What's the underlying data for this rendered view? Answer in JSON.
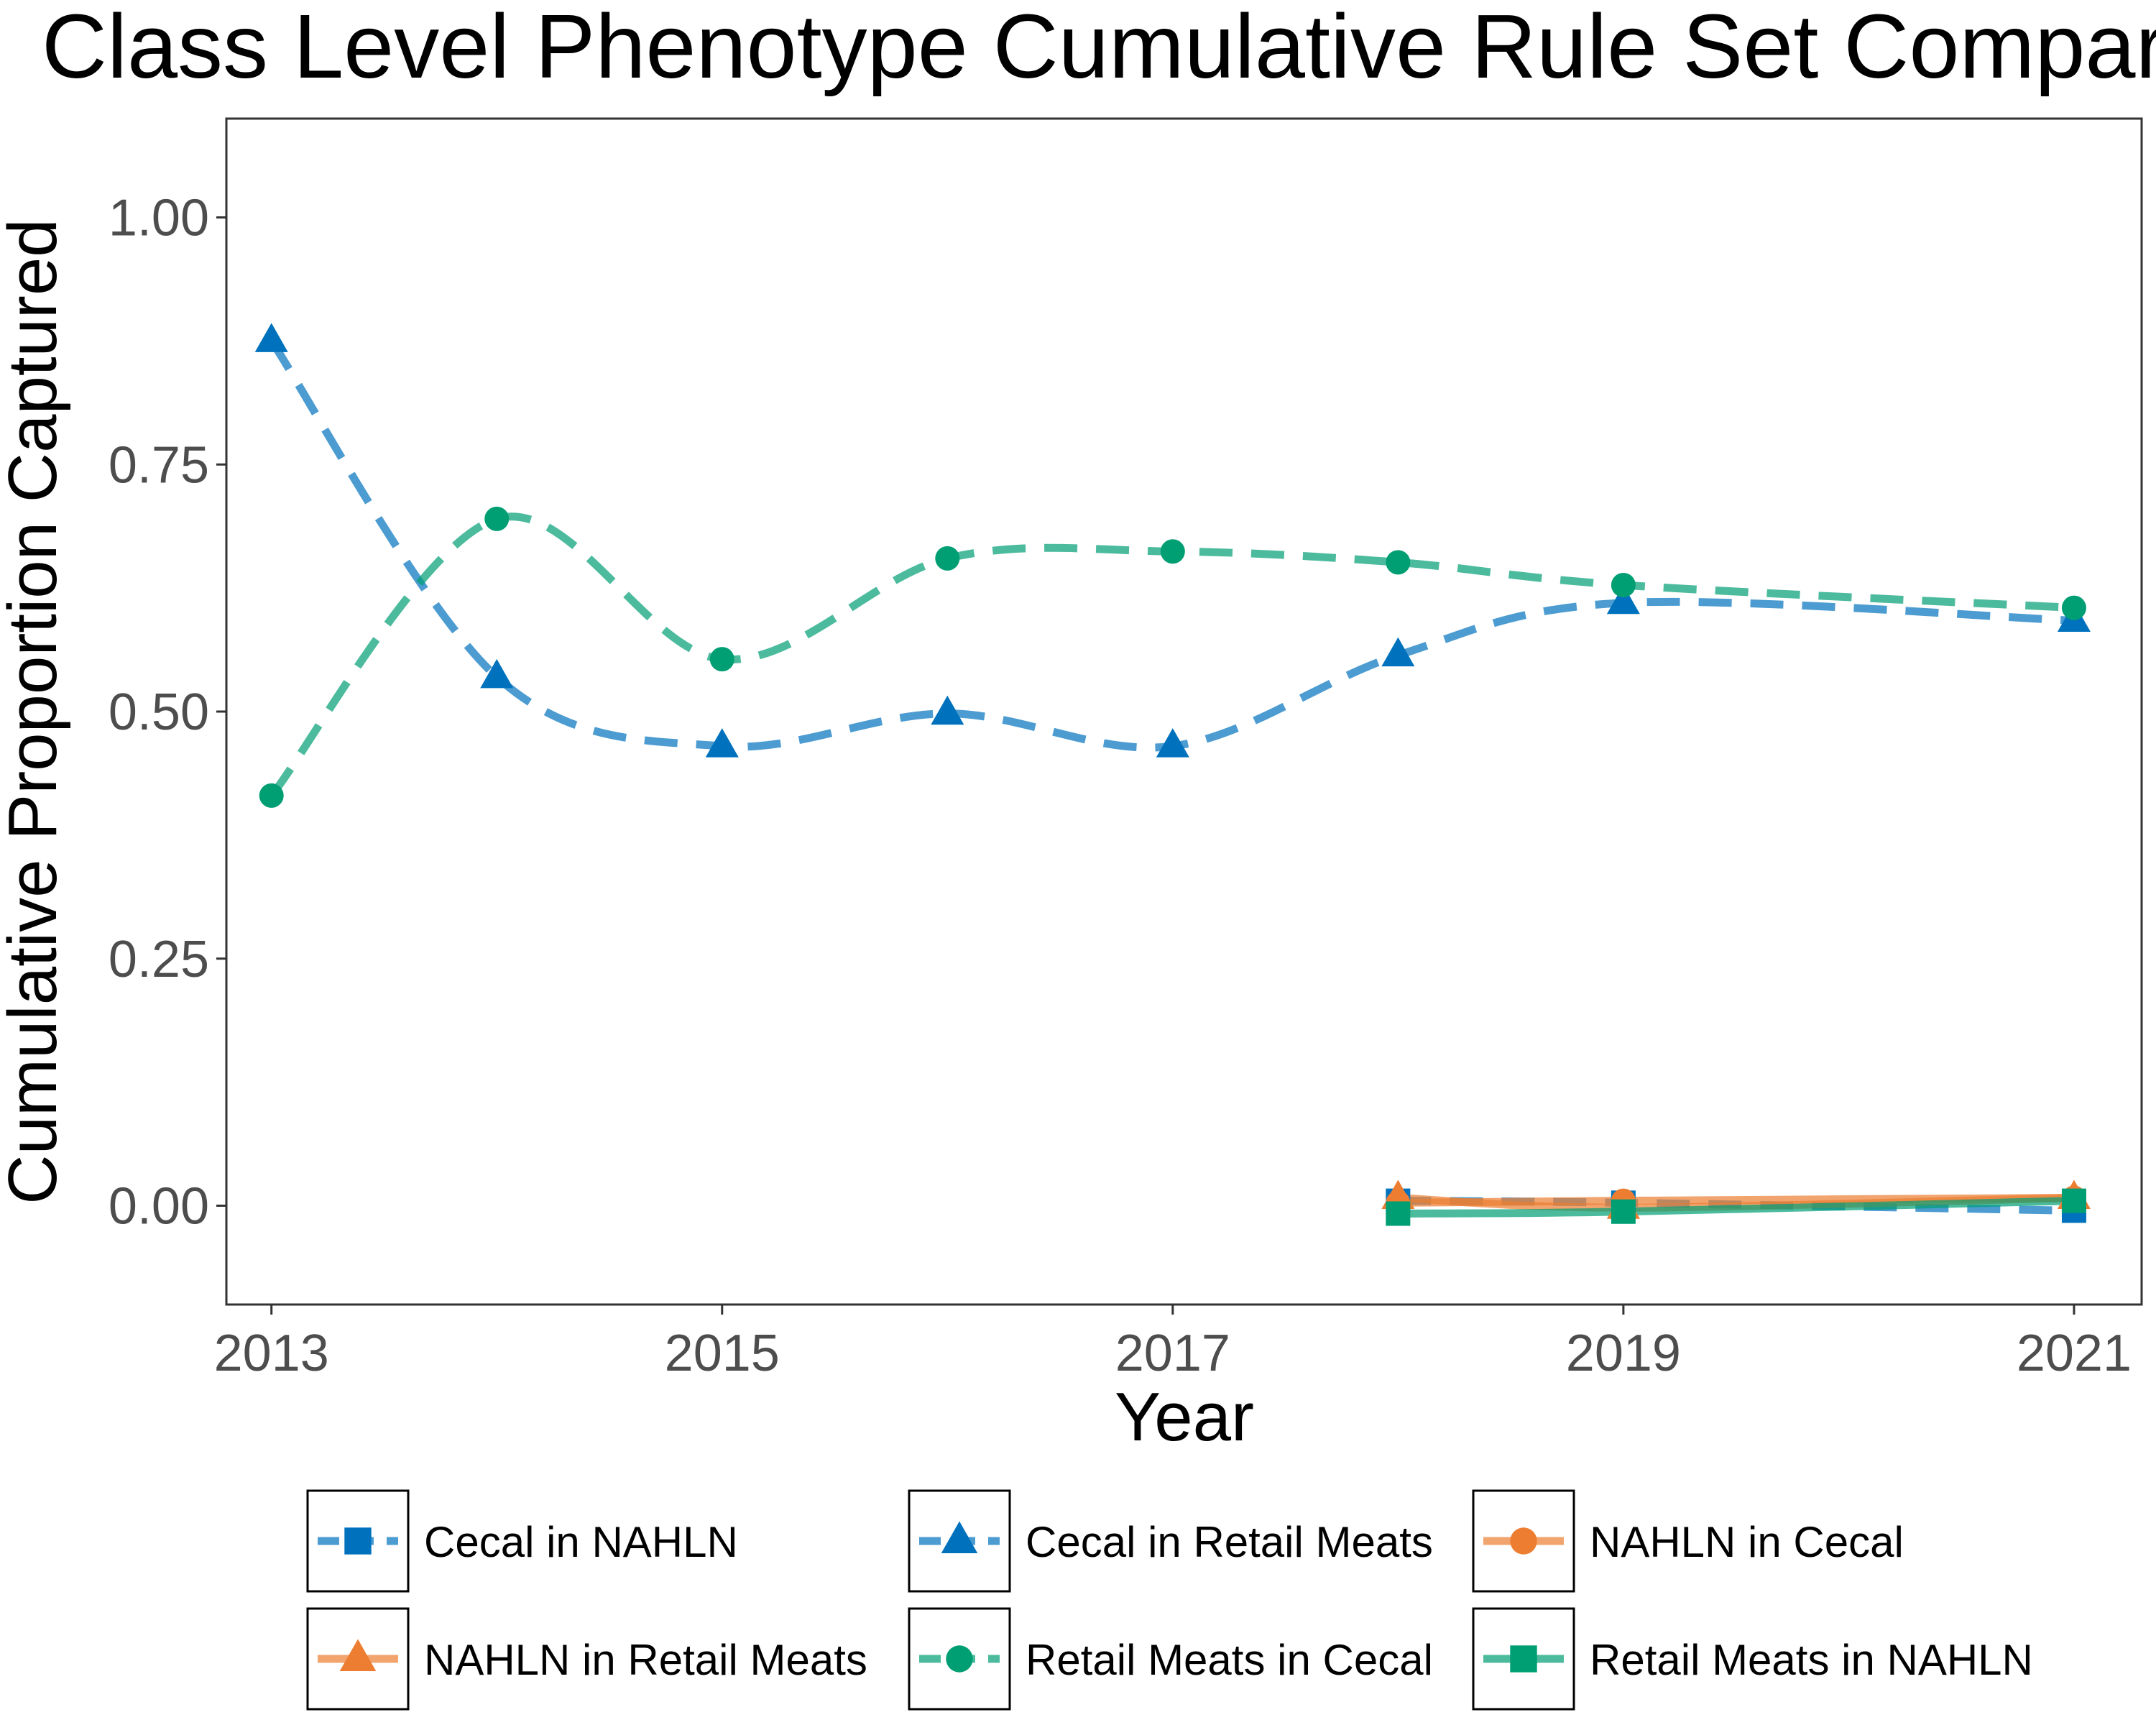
{
  "chart_data": {
    "type": "line",
    "title": "Class Level Phenotype Cumulative Rule Set Compar",
    "xlabel": "Year",
    "ylabel": "Cumulative Proportion Captured",
    "xlim": [
      2012.8,
      2021.3
    ],
    "ylim": [
      -0.1,
      1.1
    ],
    "x_ticks": [
      2013,
      2015,
      2017,
      2019,
      2021
    ],
    "y_ticks": [
      0.0,
      0.25,
      0.5,
      0.75,
      1.0
    ],
    "y_tick_labels": [
      "0.00",
      "0.25",
      "0.50",
      "0.75",
      "1.00"
    ],
    "grid": false,
    "legend_position": "bottom",
    "series": [
      {
        "name": "Cecal in NAHLN",
        "color": "#0072BD",
        "line_style": "dashed",
        "marker": "square",
        "points": [
          [
            2018,
            0.005
          ],
          [
            2019,
            0.003
          ],
          [
            2021,
            -0.005
          ]
        ]
      },
      {
        "name": "Cecal in Retail Meats",
        "color": "#0072BD",
        "line_style": "dashed",
        "marker": "triangle",
        "points": [
          [
            2013,
            0.875
          ],
          [
            2014,
            0.535
          ],
          [
            2015,
            0.465
          ],
          [
            2016,
            0.498
          ],
          [
            2017,
            0.465
          ],
          [
            2018,
            0.557
          ],
          [
            2019,
            0.61
          ],
          [
            2021,
            0.592
          ]
        ]
      },
      {
        "name": "NAHLN in Cecal",
        "color": "#ED7D31",
        "line_style": "solid",
        "marker": "circle",
        "points": [
          [
            2018,
            0.003
          ],
          [
            2019,
            0.005
          ],
          [
            2021,
            0.008
          ]
        ]
      },
      {
        "name": "NAHLN in Retail Meats",
        "color": "#ED7D31",
        "line_style": "solid",
        "marker": "triangle",
        "points": [
          [
            2018,
            0.008
          ],
          [
            2019,
            -0.002
          ],
          [
            2021,
            0.008
          ]
        ]
      },
      {
        "name": "Retail Meats in Cecal",
        "color": "#009E73",
        "line_style": "dashed",
        "marker": "circle",
        "points": [
          [
            2013,
            0.415
          ],
          [
            2014,
            0.695
          ],
          [
            2015,
            0.553
          ],
          [
            2016,
            0.655
          ],
          [
            2017,
            0.662
          ],
          [
            2018,
            0.651
          ],
          [
            2019,
            0.628
          ],
          [
            2021,
            0.605
          ]
        ]
      },
      {
        "name": "Retail Meats in NAHLN",
        "color": "#009E73",
        "line_style": "solid",
        "marker": "square",
        "points": [
          [
            2018,
            -0.008
          ],
          [
            2019,
            -0.006
          ],
          [
            2021,
            0.005
          ]
        ]
      }
    ]
  }
}
